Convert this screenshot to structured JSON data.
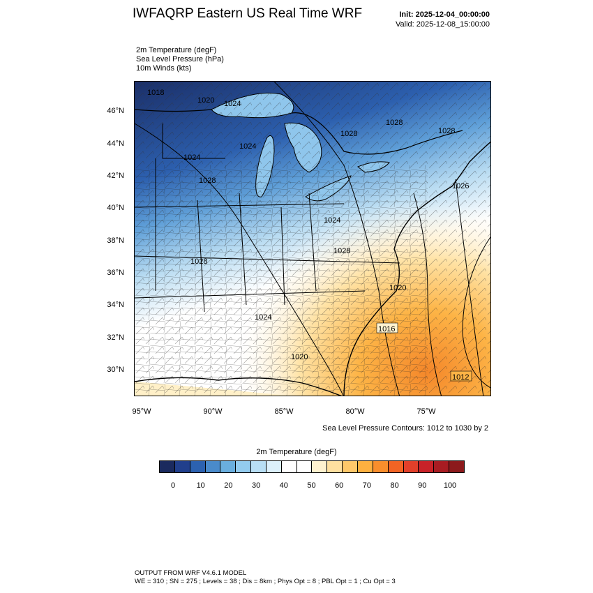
{
  "header": {
    "title": "IWFAQRP Eastern US Real Time WRF",
    "init": "Init: 2025-12-04_00:00:00",
    "valid": "Valid: 2025-12-08_15:00:00"
  },
  "fields": {
    "line1": "2m Temperature   (degF)",
    "line2": "Sea Level Pressure   (hPa)",
    "line3": "10m Winds   (kts)"
  },
  "map": {
    "lat_labels": [
      "46°N",
      "44°N",
      "42°N",
      "40°N",
      "38°N",
      "36°N",
      "34°N",
      "32°N",
      "30°N"
    ],
    "lon_labels": [
      "95°W",
      "90°W",
      "85°W",
      "80°W",
      "75°W"
    ],
    "pressure_labels": [
      "1018",
      "1020",
      "1024",
      "1024",
      "1028",
      "1028",
      "1028",
      "1028",
      "1024",
      "1026",
      "1024",
      "1028",
      "1028",
      "1024",
      "1020",
      "1020",
      "1024",
      "1020",
      "1016",
      "1012",
      "1026"
    ],
    "contours_note": "Sea Level Pressure Contours: 1012 to 1030 by 2"
  },
  "colorbar": {
    "title": "2m Temperature  (degF)",
    "colors": [
      "#1b2a5e",
      "#213f8c",
      "#2c62b0",
      "#4a8bcb",
      "#6aaede",
      "#93cbee",
      "#b8def4",
      "#dcf0fb",
      "#ffffff",
      "#ffffff",
      "#fff2cf",
      "#ffe0a0",
      "#ffc86a",
      "#fdb040",
      "#f98e2c",
      "#f26424",
      "#e2402a",
      "#c82228",
      "#a81c22",
      "#8c1a1c"
    ],
    "labels": [
      "0",
      "10",
      "20",
      "30",
      "40",
      "50",
      "60",
      "70",
      "80",
      "90",
      "100"
    ]
  },
  "footer": {
    "line1": "OUTPUT FROM WRF V4.6.1 MODEL",
    "line2": "WE = 310 ; SN = 275 ; Levels = 38 ; Dis = 8km ; Phys Opt = 8 ; PBL Opt = 1 ; Cu Opt = 3"
  }
}
